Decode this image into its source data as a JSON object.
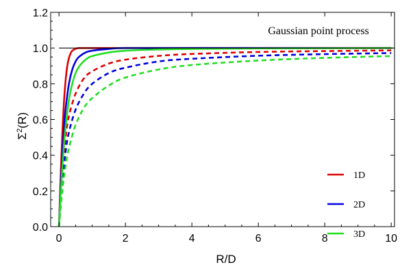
{
  "chart_data": {
    "type": "line",
    "title": "",
    "annotation": "Gaussian point process",
    "xlabel": "R/D",
    "ylabel_main": "Σ",
    "ylabel_sup": "2",
    "ylabel_tail": "(R)",
    "xlim": [
      -0.25,
      10.1
    ],
    "ylim": [
      0,
      1.2
    ],
    "xticks": [
      0,
      2,
      4,
      6,
      8,
      10
    ],
    "yticks": [
      0.0,
      0.2,
      0.4,
      0.6,
      0.8,
      1.0,
      1.2
    ],
    "ytick_labels": [
      "0.0",
      "0.2",
      "0.4",
      "0.6",
      "0.8",
      "1.0",
      "1.2"
    ],
    "reference_line": {
      "y": 1.0,
      "color": "#000000"
    },
    "legend_position": "bottom-right",
    "series": [
      {
        "name": "1D",
        "color": "#dd0000",
        "style": "solid",
        "x": [
          0,
          0.05,
          0.1,
          0.15,
          0.2,
          0.25,
          0.3,
          0.35,
          0.4,
          0.5,
          0.6,
          0.8,
          1,
          2,
          4,
          6,
          8,
          10
        ],
        "y": [
          0,
          0.28,
          0.52,
          0.7,
          0.82,
          0.9,
          0.945,
          0.97,
          0.985,
          0.996,
          1.0,
          1.0,
          1.0,
          1.0,
          1.0,
          1.0,
          1.0,
          1.0
        ]
      },
      {
        "name": "2D",
        "color": "#0000dd",
        "style": "solid",
        "x": [
          0,
          0.05,
          0.1,
          0.15,
          0.2,
          0.3,
          0.4,
          0.5,
          0.6,
          0.8,
          1,
          1.5,
          2,
          4,
          6,
          8,
          10
        ],
        "y": [
          0,
          0.22,
          0.4,
          0.55,
          0.66,
          0.8,
          0.88,
          0.925,
          0.95,
          0.975,
          0.985,
          0.995,
          1.0,
          1.0,
          1.0,
          1.0,
          1.0
        ]
      },
      {
        "name": "3D",
        "color": "#22dd22",
        "style": "solid",
        "x": [
          0,
          0.05,
          0.1,
          0.15,
          0.2,
          0.3,
          0.4,
          0.5,
          0.6,
          0.8,
          1,
          1.5,
          2,
          3,
          4,
          6,
          8,
          10
        ],
        "y": [
          0,
          0.18,
          0.33,
          0.46,
          0.56,
          0.71,
          0.8,
          0.86,
          0.895,
          0.935,
          0.955,
          0.975,
          0.985,
          0.992,
          0.995,
          0.998,
          0.999,
          1.0
        ]
      },
      {
        "name": "",
        "color": "#dd0000",
        "style": "dashed",
        "x": [
          0,
          0.1,
          0.2,
          0.3,
          0.5,
          0.75,
          1,
          1.5,
          2,
          3,
          4,
          6,
          8,
          10
        ],
        "y": [
          0,
          0.3,
          0.5,
          0.62,
          0.745,
          0.83,
          0.87,
          0.913,
          0.935,
          0.956,
          0.967,
          0.978,
          0.983,
          0.987
        ]
      },
      {
        "name": "",
        "color": "#0000dd",
        "style": "dashed",
        "x": [
          0,
          0.1,
          0.2,
          0.3,
          0.5,
          0.75,
          1,
          1.5,
          2,
          3,
          4,
          6,
          8,
          10
        ],
        "y": [
          0,
          0.25,
          0.42,
          0.53,
          0.655,
          0.745,
          0.8,
          0.86,
          0.89,
          0.925,
          0.94,
          0.957,
          0.966,
          0.972
        ]
      },
      {
        "name": "",
        "color": "#22dd22",
        "style": "dashed",
        "x": [
          0,
          0.1,
          0.2,
          0.3,
          0.5,
          0.75,
          1,
          1.5,
          2,
          3,
          4,
          6,
          8,
          10
        ],
        "y": [
          0,
          0.2,
          0.34,
          0.44,
          0.57,
          0.665,
          0.72,
          0.79,
          0.835,
          0.88,
          0.905,
          0.93,
          0.945,
          0.955
        ]
      }
    ]
  }
}
